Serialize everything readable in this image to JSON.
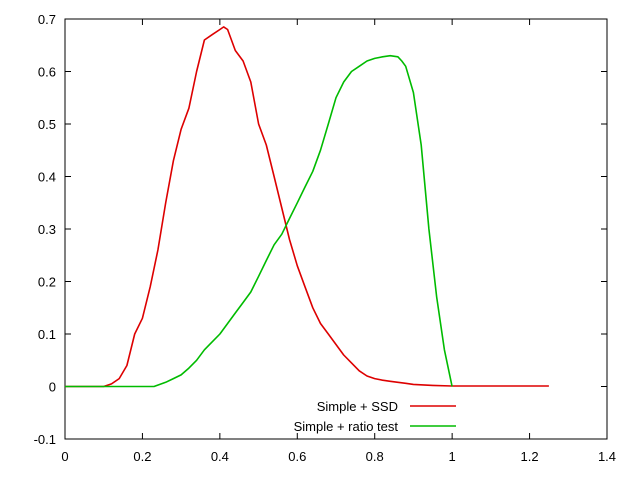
{
  "chart_data": {
    "type": "line",
    "xlim": [
      0,
      1.4
    ],
    "ylim": [
      -0.1,
      0.7
    ],
    "x_ticks": [
      "0",
      "0.2",
      "0.4",
      "0.6",
      "0.8",
      "1",
      "1.2",
      "1.4"
    ],
    "y_ticks": [
      "-0.1",
      "0",
      "0.1",
      "0.2",
      "0.3",
      "0.4",
      "0.5",
      "0.6",
      "0.7"
    ],
    "grid": false,
    "legend_position": "bottom-center",
    "series": [
      {
        "name": "Simple + SSD",
        "color": "#dd0000",
        "x": [
          0.0,
          0.05,
          0.1,
          0.12,
          0.14,
          0.16,
          0.18,
          0.2,
          0.22,
          0.24,
          0.26,
          0.28,
          0.3,
          0.32,
          0.34,
          0.36,
          0.38,
          0.4,
          0.41,
          0.42,
          0.44,
          0.46,
          0.48,
          0.5,
          0.52,
          0.54,
          0.56,
          0.58,
          0.6,
          0.62,
          0.64,
          0.66,
          0.68,
          0.7,
          0.72,
          0.74,
          0.76,
          0.78,
          0.8,
          0.82,
          0.84,
          0.86,
          0.88,
          0.9,
          0.95,
          1.0,
          1.05,
          1.1,
          1.15,
          1.2,
          1.25
        ],
        "y": [
          0.0,
          0.0,
          0.0,
          0.005,
          0.015,
          0.04,
          0.1,
          0.13,
          0.19,
          0.26,
          0.35,
          0.43,
          0.49,
          0.53,
          0.6,
          0.66,
          0.67,
          0.68,
          0.685,
          0.68,
          0.64,
          0.62,
          0.58,
          0.5,
          0.46,
          0.4,
          0.34,
          0.28,
          0.23,
          0.19,
          0.15,
          0.12,
          0.1,
          0.08,
          0.06,
          0.045,
          0.03,
          0.02,
          0.015,
          0.012,
          0.01,
          0.008,
          0.006,
          0.004,
          0.002,
          0.001,
          0.001,
          0.001,
          0.001,
          0.001,
          0.001
        ]
      },
      {
        "name": "Simple + ratio test",
        "color": "#00bb00",
        "x": [
          0.0,
          0.05,
          0.1,
          0.15,
          0.2,
          0.23,
          0.26,
          0.28,
          0.3,
          0.32,
          0.34,
          0.36,
          0.38,
          0.4,
          0.42,
          0.44,
          0.46,
          0.48,
          0.5,
          0.52,
          0.54,
          0.56,
          0.58,
          0.6,
          0.62,
          0.64,
          0.66,
          0.68,
          0.7,
          0.72,
          0.74,
          0.76,
          0.78,
          0.8,
          0.82,
          0.84,
          0.86,
          0.87,
          0.88,
          0.9,
          0.92,
          0.94,
          0.96,
          0.98,
          1.0
        ],
        "y": [
          0.0,
          0.0,
          0.0,
          0.0,
          0.0,
          0.0,
          0.008,
          0.015,
          0.022,
          0.035,
          0.05,
          0.07,
          0.085,
          0.1,
          0.12,
          0.14,
          0.16,
          0.18,
          0.21,
          0.24,
          0.27,
          0.29,
          0.32,
          0.35,
          0.38,
          0.41,
          0.45,
          0.5,
          0.55,
          0.58,
          0.6,
          0.61,
          0.62,
          0.625,
          0.628,
          0.63,
          0.628,
          0.62,
          0.61,
          0.56,
          0.46,
          0.3,
          0.17,
          0.07,
          0.0
        ]
      }
    ]
  }
}
